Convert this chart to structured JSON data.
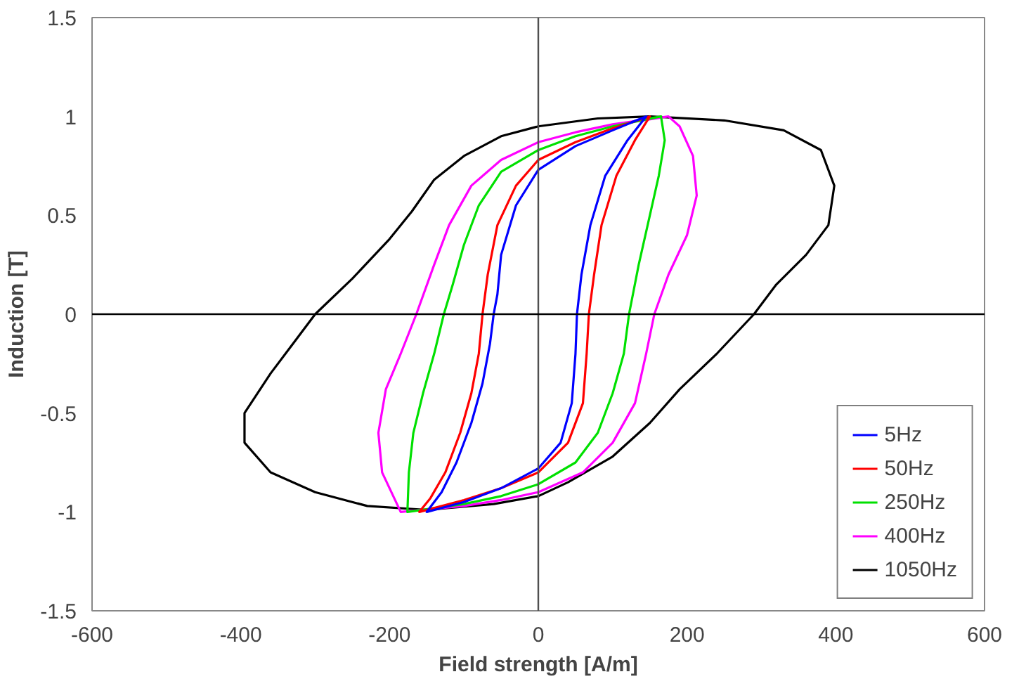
{
  "chart_data": {
    "type": "line",
    "xlabel": "Field strength [A/m]",
    "ylabel": "Induction [T]",
    "xlim": [
      -600,
      600
    ],
    "ylim": [
      -1.5,
      1.5
    ],
    "xticks": [
      -600,
      -400,
      -200,
      0,
      200,
      400,
      600
    ],
    "yticks": [
      -1.5,
      -1,
      -0.5,
      0,
      0.5,
      1,
      1.5
    ],
    "grid": false,
    "legend": "bottom right",
    "marker": "none",
    "line_style": "solid",
    "ref_lines": [
      {
        "axis": "x",
        "value": 0,
        "color": "#505050"
      },
      {
        "axis": "y",
        "value": 0,
        "color": "#000000"
      }
    ],
    "series": [
      {
        "name": "5Hz",
        "color": "#0000ff",
        "x": [
          145,
          100,
          50,
          0,
          -30,
          -50,
          -55,
          -60,
          -65,
          -75,
          -90,
          -110,
          -130,
          -150,
          -100,
          -50,
          0,
          30,
          45,
          50,
          52,
          58,
          70,
          90,
          120,
          145,
          125
        ],
        "values": [
          1,
          0.93,
          0.85,
          0.73,
          0.55,
          0.3,
          0.1,
          0,
          -0.15,
          -0.35,
          -0.55,
          -0.75,
          -0.9,
          -1,
          -0.95,
          -0.88,
          -0.78,
          -0.65,
          -0.45,
          -0.2,
          0,
          0.2,
          0.45,
          0.7,
          0.88,
          1,
          0.97
        ]
      },
      {
        "name": "50Hz",
        "color": "#ff0000",
        "x": [
          150,
          100,
          50,
          0,
          -30,
          -55,
          -68,
          -75,
          -80,
          -90,
          -105,
          -125,
          -145,
          -160,
          -100,
          -50,
          0,
          40,
          60,
          65,
          68,
          75,
          85,
          105,
          130,
          150,
          125
        ],
        "values": [
          1,
          0.94,
          0.87,
          0.78,
          0.65,
          0.45,
          0.2,
          0,
          -0.2,
          -0.4,
          -0.6,
          -0.8,
          -0.93,
          -1,
          -0.94,
          -0.88,
          -0.8,
          -0.65,
          -0.45,
          -0.2,
          0,
          0.2,
          0.45,
          0.7,
          0.88,
          1,
          0.97
        ]
      },
      {
        "name": "250Hz",
        "color": "#00e000",
        "x": [
          165,
          100,
          50,
          0,
          -50,
          -80,
          -100,
          -115,
          -127,
          -140,
          -155,
          -168,
          -174,
          -176,
          -100,
          -50,
          0,
          50,
          80,
          100,
          115,
          122,
          135,
          150,
          162,
          170,
          165,
          135
        ],
        "values": [
          1,
          0.95,
          0.9,
          0.83,
          0.72,
          0.55,
          0.35,
          0.15,
          0,
          -0.2,
          -0.4,
          -0.6,
          -0.8,
          -1,
          -0.96,
          -0.92,
          -0.86,
          -0.75,
          -0.6,
          -0.4,
          -0.2,
          0,
          0.25,
          0.5,
          0.7,
          0.88,
          1,
          0.98
        ]
      },
      {
        "name": "400Hz",
        "color": "#ff00ff",
        "x": [
          175,
          100,
          50,
          0,
          -50,
          -90,
          -120,
          -140,
          -164,
          -185,
          -205,
          -215,
          -210,
          -185,
          -100,
          -50,
          0,
          60,
          100,
          130,
          145,
          156,
          175,
          200,
          213,
          208,
          190,
          175,
          140
        ],
        "values": [
          1,
          0.96,
          0.92,
          0.87,
          0.78,
          0.65,
          0.45,
          0.25,
          0,
          -0.2,
          -0.38,
          -0.6,
          -0.8,
          -1,
          -0.97,
          -0.94,
          -0.9,
          -0.8,
          -0.65,
          -0.45,
          -0.2,
          0,
          0.2,
          0.4,
          0.6,
          0.8,
          0.95,
          1,
          0.98
        ]
      },
      {
        "name": "1050Hz",
        "color": "#000000",
        "x": [
          150,
          250,
          330,
          380,
          398,
          390,
          360,
          320,
          290,
          240,
          190,
          150,
          100,
          40,
          0,
          -60,
          -150,
          -230,
          -300,
          -360,
          -395,
          -395,
          -360,
          -330,
          -300,
          -250,
          -200,
          -170,
          -140,
          -100,
          -50,
          0,
          80,
          150,
          200
        ],
        "values": [
          1,
          0.98,
          0.93,
          0.83,
          0.65,
          0.45,
          0.3,
          0.15,
          0,
          -0.2,
          -0.38,
          -0.55,
          -0.72,
          -0.85,
          -0.92,
          -0.96,
          -0.99,
          -0.97,
          -0.9,
          -0.8,
          -0.65,
          -0.5,
          -0.3,
          -0.15,
          0,
          0.18,
          0.38,
          0.52,
          0.68,
          0.8,
          0.9,
          0.95,
          0.99,
          1,
          0.99
        ]
      }
    ]
  }
}
